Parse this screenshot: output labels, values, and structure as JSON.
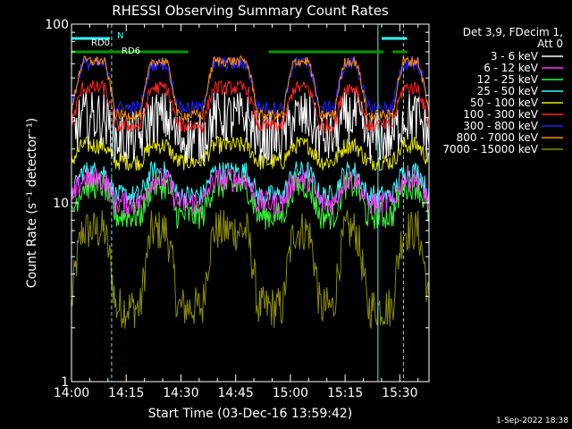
{
  "chart_data": {
    "type": "line",
    "title": "RHESSI Observing Summary Count Rates",
    "xlabel": "Start Time (03-Dec-16 13:59:42)",
    "ylabel": "Count Rate (s⁻¹ detector⁻¹)",
    "y_scale": "log",
    "ylim": [
      1,
      100
    ],
    "xlim_minutes": [
      0,
      98
    ],
    "x_ticks": [
      "14:00",
      "14:15",
      "14:30",
      "14:45",
      "15:00",
      "15:15",
      "15:30"
    ],
    "y_ticks": [
      "1",
      "10",
      "100"
    ],
    "legend_header": [
      "Det 3,9, FDecim 1,",
      "Att 0"
    ],
    "legend_position": "top-right",
    "series": [
      {
        "name": "3 - 6 keV",
        "color": "#ffffff",
        "day": 30,
        "night": 23,
        "noise": 0.15
      },
      {
        "name": "6 - 12 keV",
        "color": "#ff33ff",
        "day": 13.5,
        "night": 10,
        "noise": 0.07
      },
      {
        "name": "12 - 25 keV",
        "color": "#33ff33",
        "day": 12.5,
        "night": 8.5,
        "noise": 0.08
      },
      {
        "name": "25 - 50 keV",
        "color": "#33ffff",
        "day": 15,
        "night": 11,
        "noise": 0.06
      },
      {
        "name": "50 - 100 keV",
        "color": "#e6e600",
        "day": 21,
        "night": 17,
        "noise": 0.05
      },
      {
        "name": "100 - 300 keV",
        "color": "#ff2222",
        "day": 44,
        "night": 27,
        "noise": 0.04
      },
      {
        "name": "300 - 800 keV",
        "color": "#2222ff",
        "day": 60,
        "night": 34,
        "noise": 0.04
      },
      {
        "name": "800 - 7000 keV",
        "color": "#ff8c00",
        "day": 62,
        "night": 31,
        "noise": 0.03
      },
      {
        "name": "7000 - 15000 keV",
        "color": "#8b8b00",
        "day": 7,
        "night": 2.6,
        "noise": 0.12
      }
    ],
    "day_intervals_minutes": [
      [
        0,
        12
      ],
      [
        19,
        29
      ],
      [
        36,
        51
      ],
      [
        58,
        68
      ],
      [
        72,
        81
      ],
      [
        88,
        98
      ]
    ],
    "annotations": {
      "rd0_label": "RD0",
      "rd6_label": "RD6",
      "n_label": "N",
      "eclipse_markers_minutes": [
        0,
        11,
        84,
        91
      ],
      "rd0_bars_minutes": [
        [
          0,
          10.5
        ],
        [
          85,
          92
        ]
      ],
      "rd6_bars_minutes": [
        [
          0,
          32
        ],
        [
          54,
          85.5
        ],
        [
          88,
          92
        ]
      ]
    }
  },
  "timestamp": "1-Sep-2022 18:38"
}
